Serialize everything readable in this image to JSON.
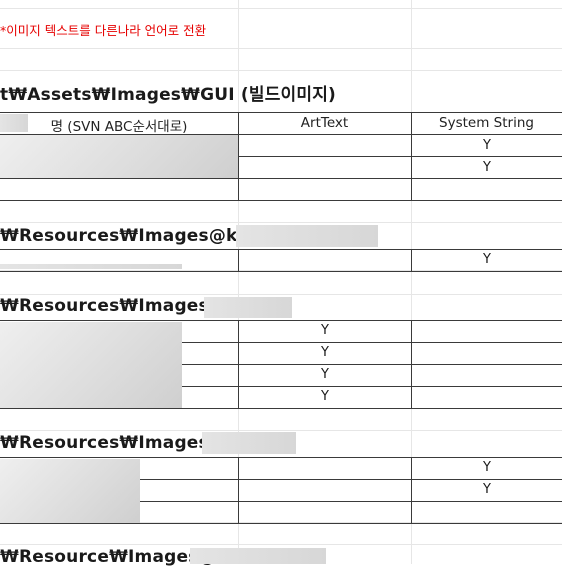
{
  "note": "*이미지 텍스트를 다른나라 언어로 전환",
  "sections": [
    {
      "heading": "t₩Assets₩Images₩GUI (빌드이미지)",
      "columns": {
        "name": "명 (SVN ABC순서대로)",
        "art_text": "ArtText",
        "system_string": "System String"
      }
    },
    {
      "heading": "₩Resources₩Images@kr₩"
    },
    {
      "heading": "₩Resources₩Images@"
    },
    {
      "heading": "₩Resources₩Images@"
    },
    {
      "heading": "₩Resource₩Images@"
    }
  ],
  "marks": {
    "y": "Y"
  }
}
